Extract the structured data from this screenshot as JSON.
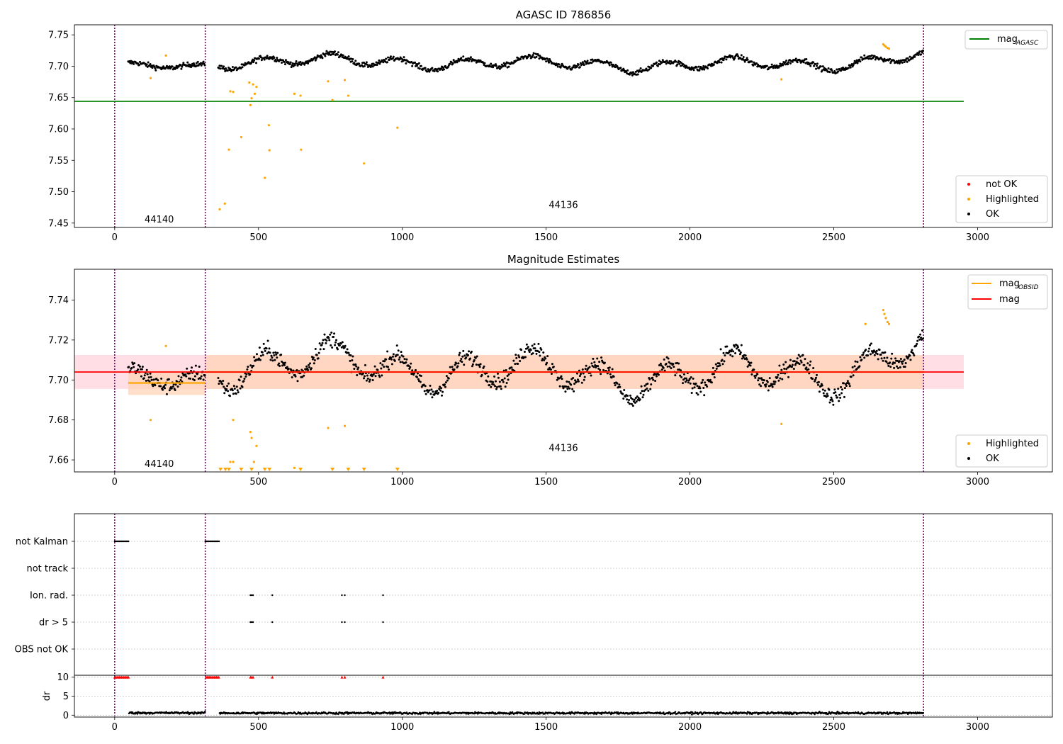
{
  "chart_data": [
    {
      "type": "scatter",
      "title": "AGASC ID 786856",
      "xlabel": "",
      "ylabel": "",
      "xlim": [
        -140,
        3260
      ],
      "ylim": [
        7.443,
        7.766
      ],
      "xticks": [
        0,
        500,
        1000,
        1500,
        2000,
        2500,
        3000
      ],
      "yticks": [
        7.45,
        7.5,
        7.55,
        7.6,
        7.65,
        7.7,
        7.75
      ],
      "ytick_labels": [
        "7.45",
        "7.50",
        "7.55",
        "7.60",
        "7.65",
        "7.70",
        "7.75"
      ],
      "obsid_boundaries": [
        0,
        315,
        2812
      ],
      "obsid_labels": [
        {
          "text": "44140",
          "x": 155,
          "y": 7.451
        },
        {
          "text": "44136",
          "x": 1560,
          "y": 7.474
        }
      ],
      "baseline_series": {
        "name": "mag",
        "subscript": "AGASC",
        "value": 7.644,
        "x_range": [
          -140,
          2952
        ],
        "color": "#008000"
      },
      "ok_segments": [
        {
          "x_range": [
            47,
            315
          ],
          "mean": 7.699,
          "amp": 0.004,
          "noise": 0.004
        },
        {
          "x_range": [
            360,
            2812
          ],
          "mean": 7.705,
          "amp": 0.008,
          "noise": 0.004
        }
      ],
      "highlighted_points": [
        [
          125,
          7.681
        ],
        [
          178,
          7.717
        ],
        [
          365,
          7.472
        ],
        [
          383,
          7.481
        ],
        [
          397,
          7.567
        ],
        [
          402,
          7.66
        ],
        [
          412,
          7.659
        ],
        [
          440,
          7.587
        ],
        [
          468,
          7.674
        ],
        [
          472,
          7.638
        ],
        [
          476,
          7.649
        ],
        [
          481,
          7.671
        ],
        [
          487,
          7.656
        ],
        [
          493,
          7.667
        ],
        [
          522,
          7.522
        ],
        [
          536,
          7.606
        ],
        [
          538,
          7.566
        ],
        [
          625,
          7.656
        ],
        [
          646,
          7.653
        ],
        [
          648,
          7.567
        ],
        [
          742,
          7.676
        ],
        [
          757,
          7.646
        ],
        [
          800,
          7.678
        ],
        [
          812,
          7.653
        ],
        [
          867,
          7.545
        ],
        [
          983,
          7.602
        ],
        [
          2318,
          7.679
        ],
        [
          2672,
          7.735
        ],
        [
          2676,
          7.733
        ],
        [
          2681,
          7.731
        ],
        [
          2687,
          7.729
        ],
        [
          2692,
          7.728
        ]
      ],
      "legend_series": [
        {
          "label": "mag",
          "subscript": "AGASC",
          "color": "#008000",
          "kind": "line"
        }
      ],
      "legend_points": [
        {
          "label": "not OK",
          "color": "#ff0000"
        },
        {
          "label": "Highlighted",
          "color": "#ffa500"
        },
        {
          "label": "OK",
          "color": "#000000"
        }
      ]
    },
    {
      "type": "scatter",
      "title": "Magnitude Estimates",
      "xlabel": "",
      "ylabel": "",
      "xlim": [
        -140,
        3260
      ],
      "ylim": [
        7.654,
        7.7554
      ],
      "xticks": [
        0,
        500,
        1000,
        1500,
        2000,
        2500,
        3000
      ],
      "yticks": [
        7.66,
        7.68,
        7.7,
        7.72,
        7.74
      ],
      "ytick_labels": [
        "7.66",
        "7.68",
        "7.70",
        "7.72",
        "7.74"
      ],
      "obsid_boundaries": [
        0,
        315,
        2812
      ],
      "obsid_labels": [
        {
          "text": "44140",
          "x": 155,
          "y": 7.6565
        },
        {
          "text": "44136",
          "x": 1560,
          "y": 7.6645
        }
      ],
      "mag_line": {
        "name": "mag",
        "value": 7.704,
        "band": [
          7.6955,
          7.7125
        ],
        "x_range": [
          -140,
          2952
        ],
        "color": "#ff0000"
      },
      "obsid_lines": [
        {
          "x_range": [
            47,
            315
          ],
          "value": 7.6985,
          "band": [
            7.6925,
            7.7045
          ]
        },
        {
          "x_range": [
            315,
            2812
          ],
          "value": 7.704,
          "band": [
            7.6955,
            7.7125
          ]
        }
      ],
      "ok_segments": [
        {
          "x_range": [
            47,
            315
          ],
          "mean": 7.699,
          "amp": 0.004,
          "noise": 0.004
        },
        {
          "x_range": [
            360,
            2812
          ],
          "mean": 7.705,
          "amp": 0.008,
          "noise": 0.004
        }
      ],
      "highlighted_points": [
        [
          125,
          7.68
        ],
        [
          178,
          7.717
        ],
        [
          412,
          7.68
        ],
        [
          402,
          7.659
        ],
        [
          412,
          7.659
        ],
        [
          472,
          7.674
        ],
        [
          476,
          7.671
        ],
        [
          484,
          7.659
        ],
        [
          493,
          7.667
        ],
        [
          625,
          7.656
        ],
        [
          742,
          7.676
        ],
        [
          800,
          7.677
        ],
        [
          2318,
          7.678
        ],
        [
          2610,
          7.728
        ],
        [
          2672,
          7.735
        ],
        [
          2676,
          7.733
        ],
        [
          2681,
          7.731
        ],
        [
          2687,
          7.729
        ],
        [
          2692,
          7.728
        ]
      ],
      "clipped_markers_x": [
        368,
        385,
        397,
        440,
        476,
        522,
        538,
        646,
        757,
        812,
        867,
        983
      ],
      "legend_series": [
        {
          "label": "mag",
          "subscript": "OBSID",
          "color": "#ffa500",
          "kind": "line"
        },
        {
          "label": "mag",
          "subscript": "",
          "color": "#ff0000",
          "kind": "line"
        }
      ],
      "legend_points": [
        {
          "label": "Highlighted",
          "color": "#ffa500"
        },
        {
          "label": "OK",
          "color": "#000000"
        }
      ]
    },
    {
      "type": "scatter",
      "title": "",
      "xlim": [
        -140,
        3260
      ],
      "xticks": [
        0,
        500,
        1000,
        1500,
        2000,
        2500,
        3000
      ],
      "obsid_boundaries": [
        0,
        315,
        2812
      ],
      "flag_rows": [
        "not Kalman",
        "not track",
        "Ion. rad.",
        "dr > 5",
        "OBS not OK"
      ],
      "flag_points": {
        "not Kalman": [
          [
            0,
            50
          ],
          [
            315,
            365
          ]
        ],
        "not track": [],
        "Ion. rad.": [
          472,
          476,
          481,
          548,
          790,
          800,
          933
        ],
        "dr > 5": [
          472,
          476,
          481,
          548,
          790,
          800,
          933
        ],
        "OBS not OK": []
      },
      "dr_panel": {
        "ylabel": "dr",
        "ylim": [
          -0.5,
          10.5
        ],
        "yticks": [
          0,
          5,
          10
        ],
        "ytick_labels": [
          "0",
          "5",
          "10"
        ],
        "ok_segments": [
          {
            "x_range": [
              50,
              315
            ],
            "mean": 0.6,
            "noise": 0.25
          },
          {
            "x_range": [
              365,
              2812
            ],
            "mean": 0.55,
            "noise": 0.25
          }
        ],
        "clipped_markers_x": [
          0,
          4,
          8,
          12,
          16,
          20,
          24,
          28,
          32,
          36,
          40,
          44,
          48,
          318,
          322,
          326,
          330,
          334,
          338,
          342,
          346,
          350,
          354,
          358,
          362,
          472,
          476,
          481,
          548,
          790,
          800,
          933
        ]
      }
    }
  ],
  "colors": {
    "ok": "#000000",
    "highlighted": "#ffa500",
    "not_ok": "#ff0000",
    "boundary": "#800080",
    "band_red": "#ffc0cb",
    "band_orange": "#ffd2b4"
  }
}
